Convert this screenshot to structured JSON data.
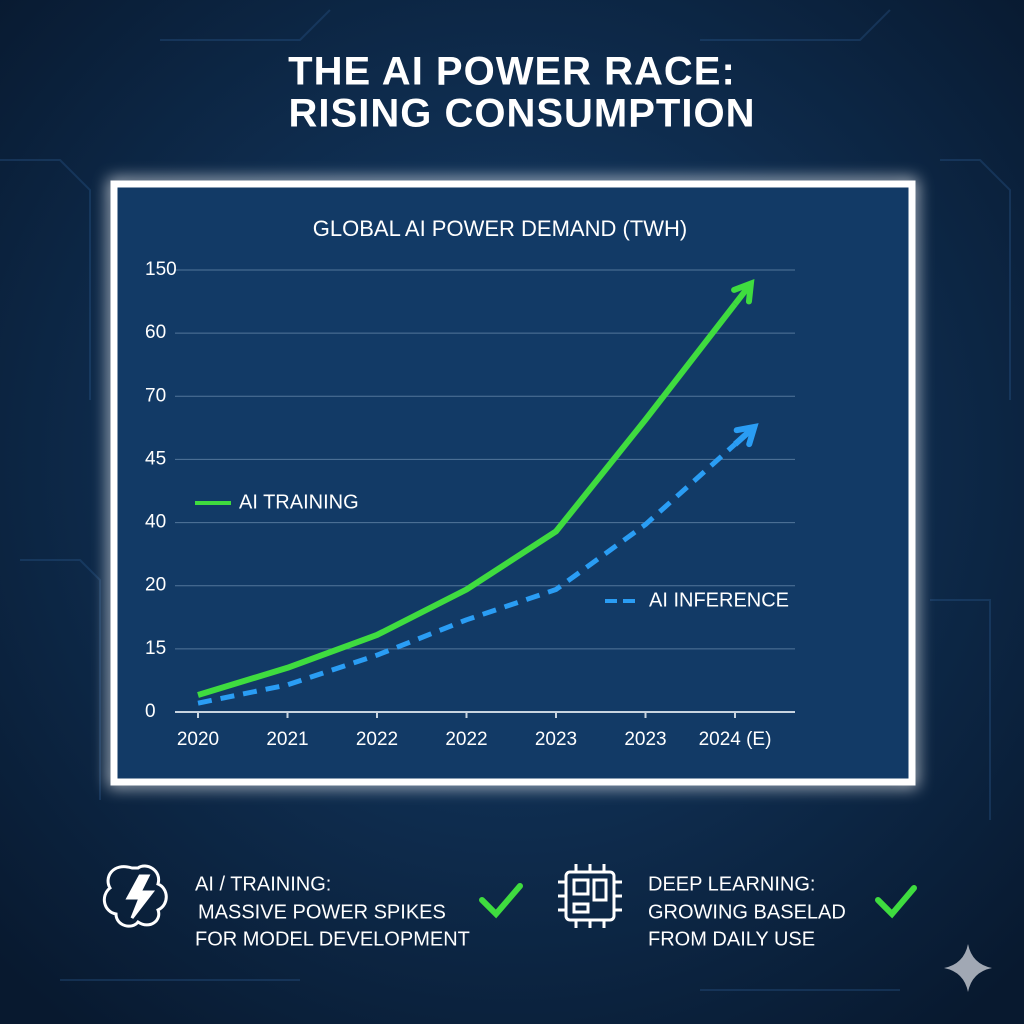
{
  "header": {
    "title_lines": [
      "THE AI POWER RACE:",
      "RISING CONSUMPTION"
    ]
  },
  "chart_data": {
    "type": "line",
    "title": "GLOBAL AI POWER DEMAND (TWH)",
    "categories": [
      "2020",
      "2021",
      "2022",
      "2022",
      "2023",
      "2023",
      "2024 (E)"
    ],
    "ylim": [
      0,
      7
    ],
    "yticks": [
      {
        "value": 0,
        "label": "0"
      },
      {
        "value": 1,
        "label": "15"
      },
      {
        "value": 2,
        "label": "20"
      },
      {
        "value": 3,
        "label": "40"
      },
      {
        "value": 4,
        "label": "45"
      },
      {
        "value": 5,
        "label": "70"
      },
      {
        "value": 6,
        "label": "60"
      },
      {
        "value": 7,
        "label": "150"
      }
    ],
    "grid": true,
    "series": [
      {
        "name": "AI TRAINING",
        "color": "#3fdc3f",
        "dashed": false,
        "values": [
          0.27,
          0.7,
          1.22,
          1.94,
          2.86,
          4.63,
          6.46
        ]
      },
      {
        "name": "AI INFERENCE",
        "color": "#2a9df4",
        "dashed": true,
        "values": [
          0.14,
          0.43,
          0.9,
          1.46,
          1.94,
          2.97,
          4.24
        ]
      }
    ]
  },
  "features": [
    {
      "heading": "AI / TRAINING:",
      "lines": [
        "MASSIVE POWER SPIKES",
        "FOR MODEL DEVELOPMENT"
      ]
    },
    {
      "heading": "DEEP LEARNING:",
      "lines": [
        "GROWING BASELAD",
        "FROM DAILY USE"
      ]
    }
  ]
}
